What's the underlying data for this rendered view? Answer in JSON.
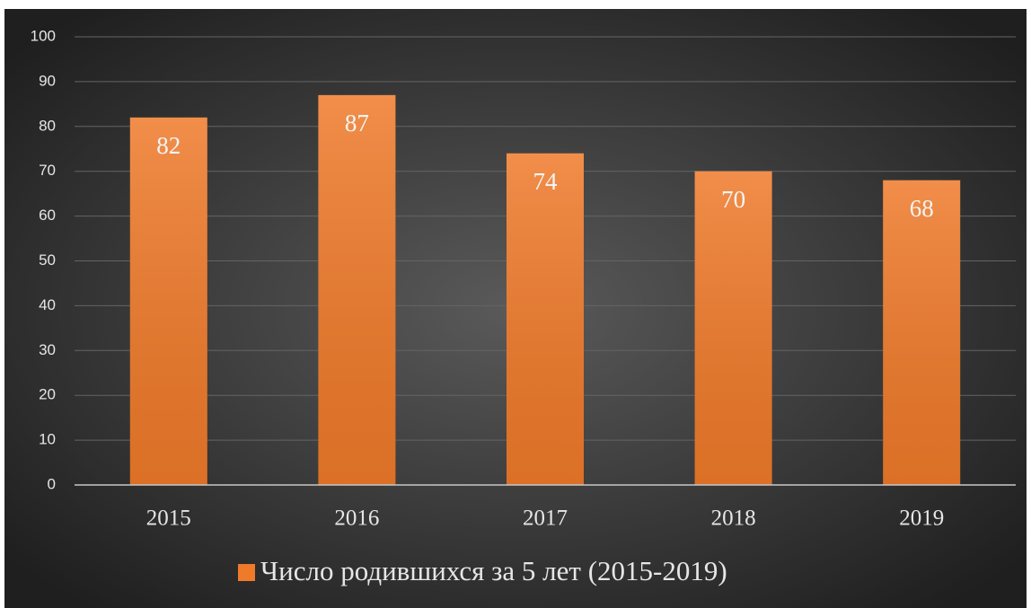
{
  "chart_data": {
    "type": "bar",
    "categories": [
      "2015",
      "2016",
      "2017",
      "2018",
      "2019"
    ],
    "series": [
      {
        "name": "Число родившихся за 5 лет (2015-2019)",
        "color": "#ef7a2a",
        "values": [
          82,
          87,
          74,
          70,
          68
        ]
      }
    ],
    "ylim": [
      0,
      100
    ],
    "yticks": [
      0,
      10,
      20,
      30,
      40,
      50,
      60,
      70,
      80,
      90,
      100
    ],
    "grid": true,
    "legend": "bottom"
  }
}
